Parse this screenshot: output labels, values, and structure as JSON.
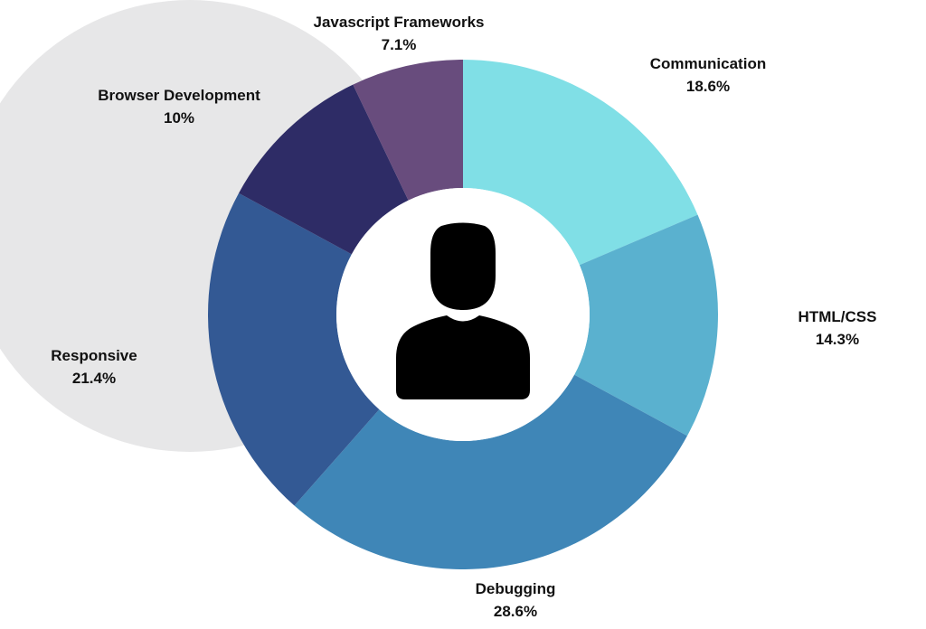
{
  "chart_data": {
    "type": "pie",
    "donut": true,
    "start": "top, clockwise",
    "center_icon": "user-silhouette-icon",
    "background_shape": "light-gray-circle",
    "background_color": "#e7e7e8",
    "slices": [
      {
        "label": "Communication",
        "value": 18.6,
        "value_label": "18.6%",
        "color": "#80dfe6"
      },
      {
        "label": "HTML/CSS",
        "value": 14.3,
        "value_label": "14.3%",
        "color": "#5ab1cf"
      },
      {
        "label": "Debugging",
        "value": 28.6,
        "value_label": "28.6%",
        "color": "#3f86b7"
      },
      {
        "label": "Responsive",
        "value": 21.4,
        "value_label": "21.4%",
        "color": "#335994"
      },
      {
        "label": "Browser Development",
        "value": 10,
        "value_label": "10%",
        "color": "#2e2c66"
      },
      {
        "label": "Javascript Frameworks",
        "value": 7.1,
        "value_label": "7.1%",
        "color": "#684c7d"
      }
    ]
  }
}
